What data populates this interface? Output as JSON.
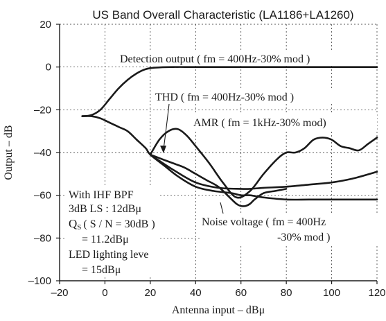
{
  "chart_data": {
    "type": "line",
    "title": "US Band Overall Characteristic (LA1186+LA1260)",
    "xlabel": "Antenna input  –  dBμ",
    "ylabel": "Output  –  dB",
    "xlim": [
      -20,
      120
    ],
    "ylim": [
      -100,
      20
    ],
    "x_ticks": [
      -20,
      0,
      20,
      40,
      60,
      80,
      100,
      120
    ],
    "y_ticks": [
      20,
      0,
      -20,
      -40,
      -60,
      -80,
      -100
    ],
    "x_tick_labels": [
      "–20",
      "0",
      "20",
      "40",
      "60",
      "80",
      "100",
      "120"
    ],
    "y_tick_labels": [
      "20",
      "0",
      "–20",
      "–40",
      "–60",
      "–80",
      "–100"
    ],
    "grid": true,
    "series": [
      {
        "name": "Detection output ( fm = 400Hz-30% mod )",
        "x": [
          -10,
          -6,
          -2,
          2,
          6,
          10,
          14,
          18,
          22,
          30,
          40,
          60,
          80,
          100,
          120
        ],
        "y": [
          -23,
          -22.5,
          -20,
          -15,
          -10,
          -6,
          -3,
          -1,
          -0.3,
          0,
          0,
          0,
          0,
          0,
          0
        ]
      },
      {
        "name": "THD ( fm = 400Hz-30% mod )",
        "x": [
          20,
          25,
          30,
          35,
          40,
          45,
          50,
          55,
          58,
          60,
          62,
          64,
          66,
          70,
          75,
          80
        ],
        "y": [
          -41,
          -43,
          -45,
          -47,
          -50,
          -53,
          -56,
          -61,
          -64,
          -65,
          -65,
          -64,
          -62,
          -59,
          -58,
          -57
        ]
      },
      {
        "name": "AMR ( fm = 1kHz-30% mod)",
        "x": [
          20,
          24,
          28,
          32,
          36,
          40,
          46,
          52,
          58,
          64,
          70,
          76,
          80,
          84,
          88,
          92,
          96,
          100,
          104,
          108,
          112,
          116,
          120
        ],
        "y": [
          -41,
          -34,
          -30,
          -29,
          -32,
          -37,
          -45,
          -54,
          -61,
          -58,
          -50,
          -43,
          -40,
          -40,
          -38,
          -34,
          -33,
          -34,
          -37,
          -38,
          -39,
          -36,
          -33
        ]
      },
      {
        "name": "Noise voltage ( fm = 400Hz -30% mod )",
        "x": [
          -10,
          -6,
          -2,
          2,
          6,
          10,
          14,
          18,
          20,
          26,
          32,
          40,
          48,
          56,
          60,
          64,
          70,
          80,
          90,
          100,
          110,
          120
        ],
        "y": [
          -23,
          -23,
          -24,
          -26,
          -28,
          -30,
          -34,
          -38,
          -41,
          -46,
          -51,
          -56,
          -58,
          -59,
          -60,
          -60,
          -61,
          -62,
          -62,
          -62,
          -62,
          -62
        ]
      },
      {
        "name": "",
        "x": [
          20,
          30,
          40,
          50,
          60,
          64,
          70,
          80,
          90,
          100,
          110,
          120
        ],
        "y": [
          -41,
          -48,
          -54,
          -56.5,
          -57,
          -57,
          -56.5,
          -56,
          -55,
          -54,
          -52,
          -49
        ]
      }
    ],
    "annotations": {
      "detection": "Detection output ( fm = 400Hz-30% mod )",
      "thd": "THD ( fm = 400Hz-30% mod )",
      "amr": "AMR ( fm = 1kHz-30% mod)",
      "noise_line1": "Noise voltage ( fm = 400Hz",
      "noise_line2": "-30% mod )",
      "cond_line1": "With IHF BPF",
      "cond_line2": "3dB LS : 12dBμ",
      "cond_line3_a": "Q",
      "cond_line3_b": "S",
      "cond_line3_c": "( S / N = 30dB )",
      "cond_line4": "= 11.2dBμ",
      "cond_line5": "LED  lighting leve",
      "cond_line6": "= 15dBμ"
    }
  }
}
